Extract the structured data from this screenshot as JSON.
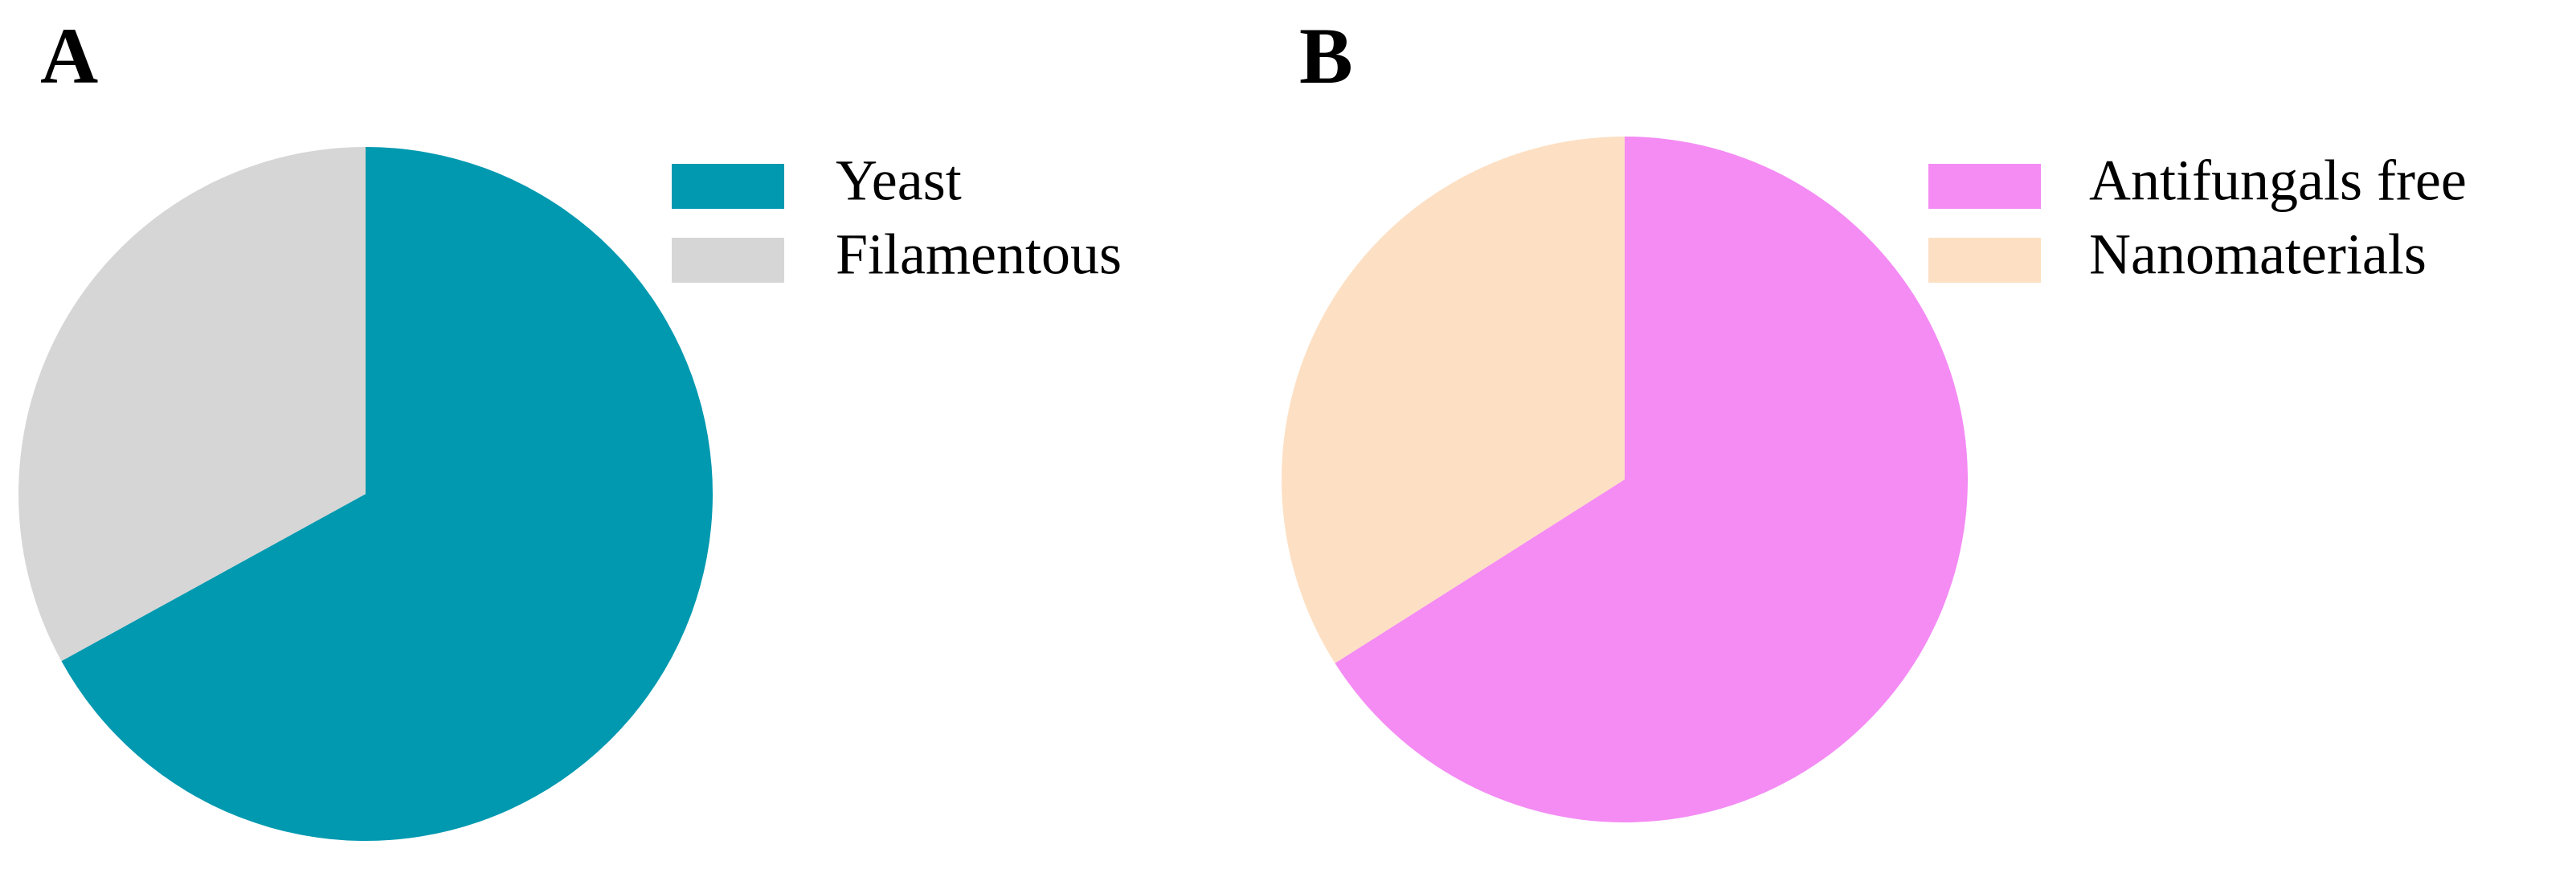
{
  "chart_data": [
    {
      "type": "pie",
      "title": "A",
      "categories": [
        "Yeast",
        "Filamentous"
      ],
      "values": [
        67,
        33
      ],
      "colors": [
        "#0099b0",
        "#d6d6d6"
      ]
    },
    {
      "type": "pie",
      "title": "B",
      "categories": [
        "Antifungals free",
        "Nanomaterials"
      ],
      "values": [
        66,
        34
      ],
      "colors": [
        "#f48cf4",
        "#fde0c3"
      ]
    }
  ]
}
